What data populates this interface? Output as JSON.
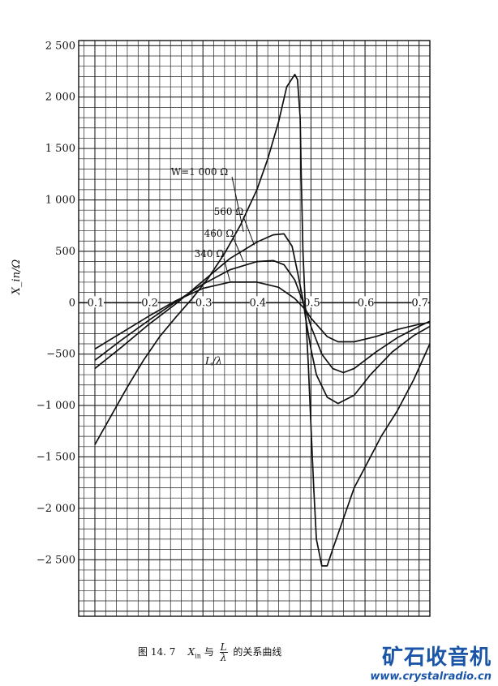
{
  "chart_data": {
    "type": "line",
    "xlabel": "L/λ",
    "ylabel": "X_in/Ω",
    "xlim": [
      0.07,
      0.72
    ],
    "ylim": [
      -3050,
      2550
    ],
    "x_ticks": [
      "0.1",
      "0.2",
      "0.3",
      "0.4",
      "0.5",
      "0.6",
      "0.7"
    ],
    "x_tick_values": [
      0.1,
      0.2,
      0.3,
      0.4,
      0.5,
      0.6,
      0.7
    ],
    "y_ticks": [
      "2 500",
      "2 000",
      "1 500",
      "1 000",
      "500",
      "0",
      "−500",
      "−1 000",
      "−1 500",
      "−2 000",
      "−2 500"
    ],
    "y_tick_values": [
      2500,
      2000,
      1500,
      1000,
      500,
      0,
      -500,
      -1000,
      -1500,
      -2000,
      -2500
    ],
    "grid": true,
    "series": [
      {
        "name": "W=1 000 Ω",
        "x": [
          0.1,
          0.13,
          0.16,
          0.19,
          0.22,
          0.25,
          0.28,
          0.31,
          0.34,
          0.37,
          0.4,
          0.42,
          0.44,
          0.455,
          0.47,
          0.475,
          0.48,
          0.482,
          0.485,
          0.49,
          0.495,
          0.5,
          0.505,
          0.51,
          0.52,
          0.53,
          0.54,
          0.56,
          0.58,
          0.6,
          0.63,
          0.66,
          0.69,
          0.72
        ],
        "values": [
          -1380,
          -1100,
          -820,
          -560,
          -330,
          -140,
          40,
          240,
          480,
          760,
          1100,
          1400,
          1760,
          2100,
          2220,
          2170,
          1800,
          1200,
          500,
          -100,
          -600,
          -1200,
          -1800,
          -2300,
          -2560,
          -2560,
          -2400,
          -2100,
          -1800,
          -1600,
          -1300,
          -1050,
          -750,
          -400
        ]
      },
      {
        "name": "560 Ω",
        "x": [
          0.1,
          0.15,
          0.2,
          0.25,
          0.3,
          0.35,
          0.4,
          0.43,
          0.45,
          0.465,
          0.475,
          0.485,
          0.49,
          0.5,
          0.51,
          0.53,
          0.55,
          0.58,
          0.61,
          0.65,
          0.69,
          0.72
        ],
        "values": [
          -640,
          -430,
          -210,
          -10,
          210,
          430,
          590,
          660,
          670,
          550,
          300,
          30,
          -150,
          -450,
          -700,
          -920,
          -980,
          -900,
          -700,
          -480,
          -320,
          -230
        ]
      },
      {
        "name": "460 Ω",
        "x": [
          0.1,
          0.15,
          0.2,
          0.25,
          0.3,
          0.35,
          0.4,
          0.43,
          0.45,
          0.47,
          0.49,
          0.5,
          0.52,
          0.54,
          0.56,
          0.58,
          0.62,
          0.66,
          0.7,
          0.72
        ],
        "values": [
          -560,
          -360,
          -170,
          10,
          180,
          320,
          400,
          410,
          370,
          220,
          -60,
          -230,
          -500,
          -640,
          -680,
          -640,
          -480,
          -340,
          -230,
          -180
        ]
      },
      {
        "name": "340 Ω",
        "x": [
          0.1,
          0.15,
          0.2,
          0.25,
          0.3,
          0.35,
          0.4,
          0.44,
          0.47,
          0.49,
          0.5,
          0.53,
          0.55,
          0.58,
          0.62,
          0.66,
          0.7,
          0.72
        ],
        "values": [
          -450,
          -290,
          -130,
          20,
          140,
          200,
          200,
          150,
          40,
          -70,
          -150,
          -330,
          -380,
          -380,
          -330,
          -260,
          -210,
          -190
        ]
      }
    ],
    "annotations": [
      "W=1 000 Ω",
      "560 Ω",
      "460 Ω",
      "340 Ω"
    ]
  },
  "caption": {
    "figure_number": "图 14. 7",
    "text_symbol": "X",
    "text_sub": "in",
    "text_mid": "与",
    "frac_num": "L",
    "frac_den": "λ",
    "text_tail": "的关系曲线"
  },
  "watermark": {
    "cn": "矿石收音机",
    "url": "www.crystalradio.cn"
  }
}
